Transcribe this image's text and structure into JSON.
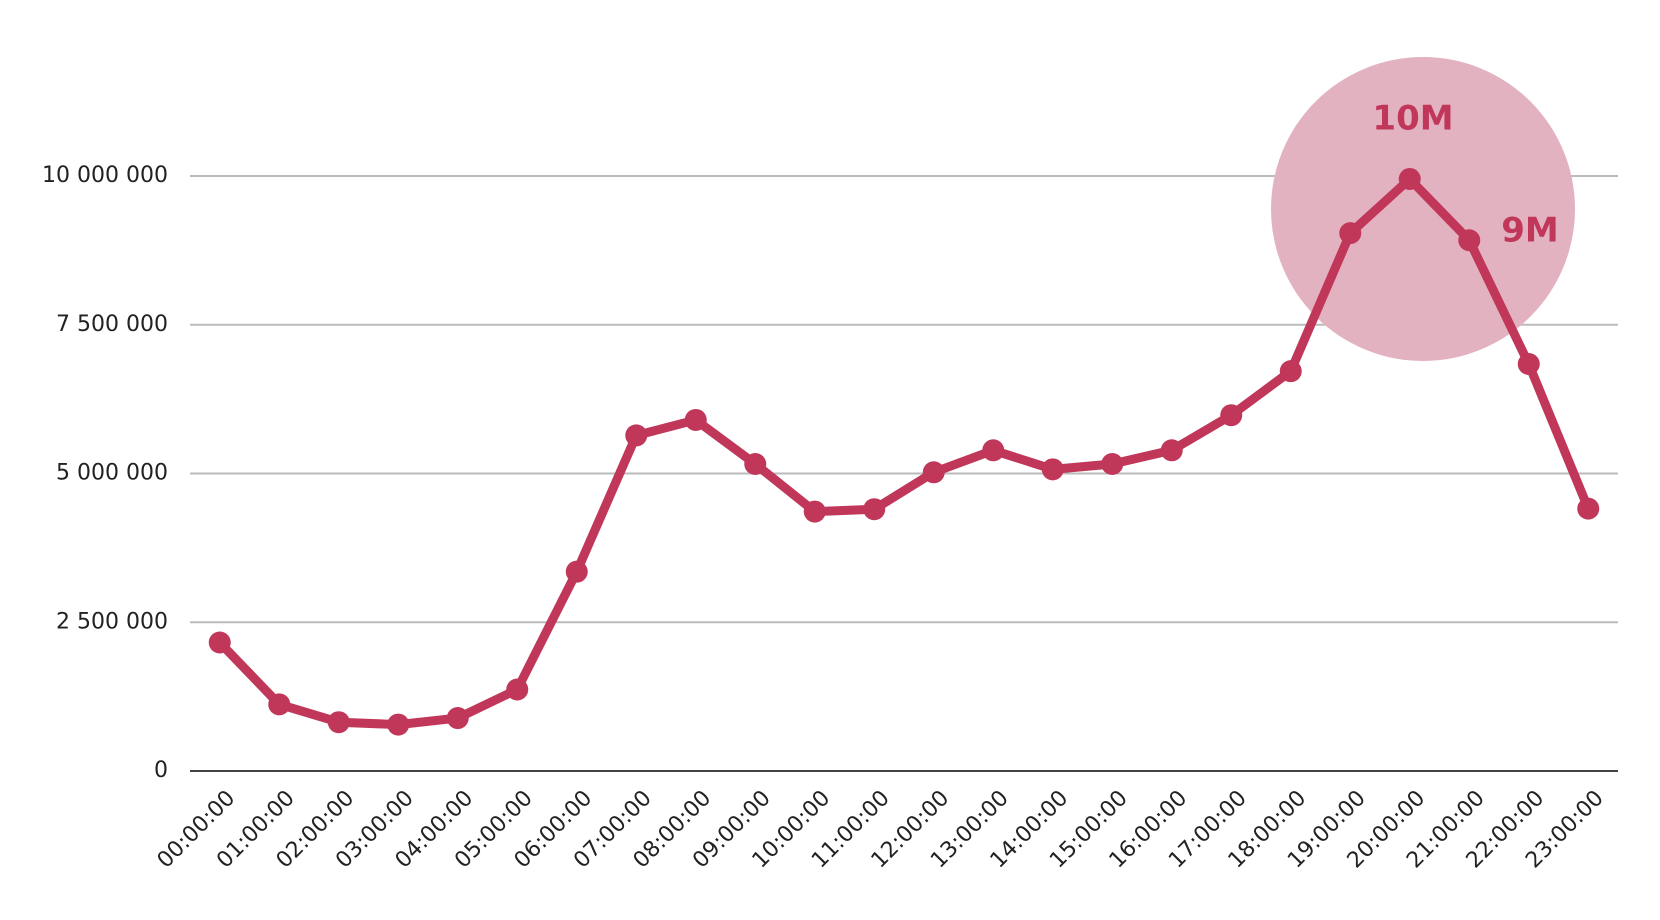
{
  "chart_data": {
    "type": "line",
    "categories": [
      "00:00:00",
      "01:00:00",
      "02:00:00",
      "03:00:00",
      "04:00:00",
      "05:00:00",
      "06:00:00",
      "07:00:00",
      "08:00:00",
      "09:00:00",
      "10:00:00",
      "11:00:00",
      "12:00:00",
      "13:00:00",
      "14:00:00",
      "15:00:00",
      "16:00:00",
      "17:00:00",
      "18:00:00",
      "19:00:00",
      "20:00:00",
      "21:00:00",
      "22:00:00",
      "23:00:00"
    ],
    "series": [
      {
        "color": "#c0375a",
        "values": [
          2160000,
          1120000,
          820000,
          780000,
          890000,
          1370000,
          3350000,
          5640000,
          5900000,
          5160000,
          4360000,
          4400000,
          5020000,
          5390000,
          5070000,
          5160000,
          5390000,
          5980000,
          6720000,
          9040000,
          9950000,
          8920000,
          6840000,
          4410000
        ]
      }
    ],
    "ylim": [
      0,
      10000000
    ],
    "yticks": [
      0,
      {
        "value": 2500000,
        "label": "2 500 000"
      },
      {
        "value": 5000000,
        "label": "5 000 000"
      },
      {
        "value": 7500000,
        "label": "7 500 000"
      },
      {
        "value": 10000000,
        "label": "10 000 000"
      }
    ],
    "grid": true,
    "annotations": [
      "10M",
      "9M"
    ]
  }
}
